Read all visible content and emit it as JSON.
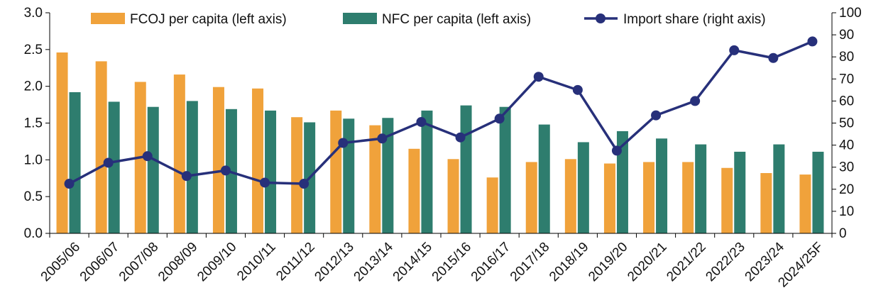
{
  "chart_data": {
    "type": "bar",
    "categories": [
      "2005/06",
      "2006/07",
      "2007/08",
      "2008/09",
      "2009/10",
      "2010/11",
      "2011/12",
      "2012/13",
      "2013/14",
      "2014/15",
      "2015/16",
      "2016/17",
      "2017/18",
      "2018/19",
      "2019/20",
      "2020/21",
      "2021/22",
      "2022/23",
      "2023/24",
      "2024/25F"
    ],
    "series": [
      {
        "name": "FCOJ per capita (left axis)",
        "kind": "bar",
        "axis": "left",
        "color": "#F0A23B",
        "values": [
          2.46,
          2.34,
          2.06,
          2.16,
          1.99,
          1.97,
          1.58,
          1.67,
          1.47,
          1.15,
          1.01,
          0.76,
          0.97,
          1.01,
          0.95,
          0.97,
          0.97,
          0.89,
          0.82,
          0.8
        ]
      },
      {
        "name": "NFC per capita (left axis)",
        "kind": "bar",
        "axis": "left",
        "color": "#2E7D6E",
        "values": [
          1.92,
          1.79,
          1.72,
          1.8,
          1.69,
          1.67,
          1.51,
          1.56,
          1.57,
          1.67,
          1.74,
          1.72,
          1.48,
          1.24,
          1.39,
          1.29,
          1.21,
          1.11,
          1.21,
          1.11
        ]
      },
      {
        "name": "Import share (right axis)",
        "kind": "line",
        "axis": "right",
        "color": "#27307A",
        "values": [
          22.5,
          32,
          35,
          26,
          28.5,
          23,
          22.5,
          41,
          43,
          50.5,
          43.5,
          52,
          71,
          65,
          37.5,
          53.5,
          60,
          83,
          79.5,
          87
        ]
      }
    ],
    "left_axis": {
      "ylim": [
        0,
        3.0
      ],
      "ticks": [
        "0.0",
        "0.5",
        "1.0",
        "1.5",
        "2.0",
        "2.5",
        "3.0"
      ]
    },
    "right_axis": {
      "ylim": [
        0,
        100
      ],
      "ticks": [
        "0",
        "10",
        "20",
        "30",
        "40",
        "50",
        "60",
        "70",
        "80",
        "90",
        "100"
      ]
    },
    "legend": "top",
    "grid": false
  }
}
